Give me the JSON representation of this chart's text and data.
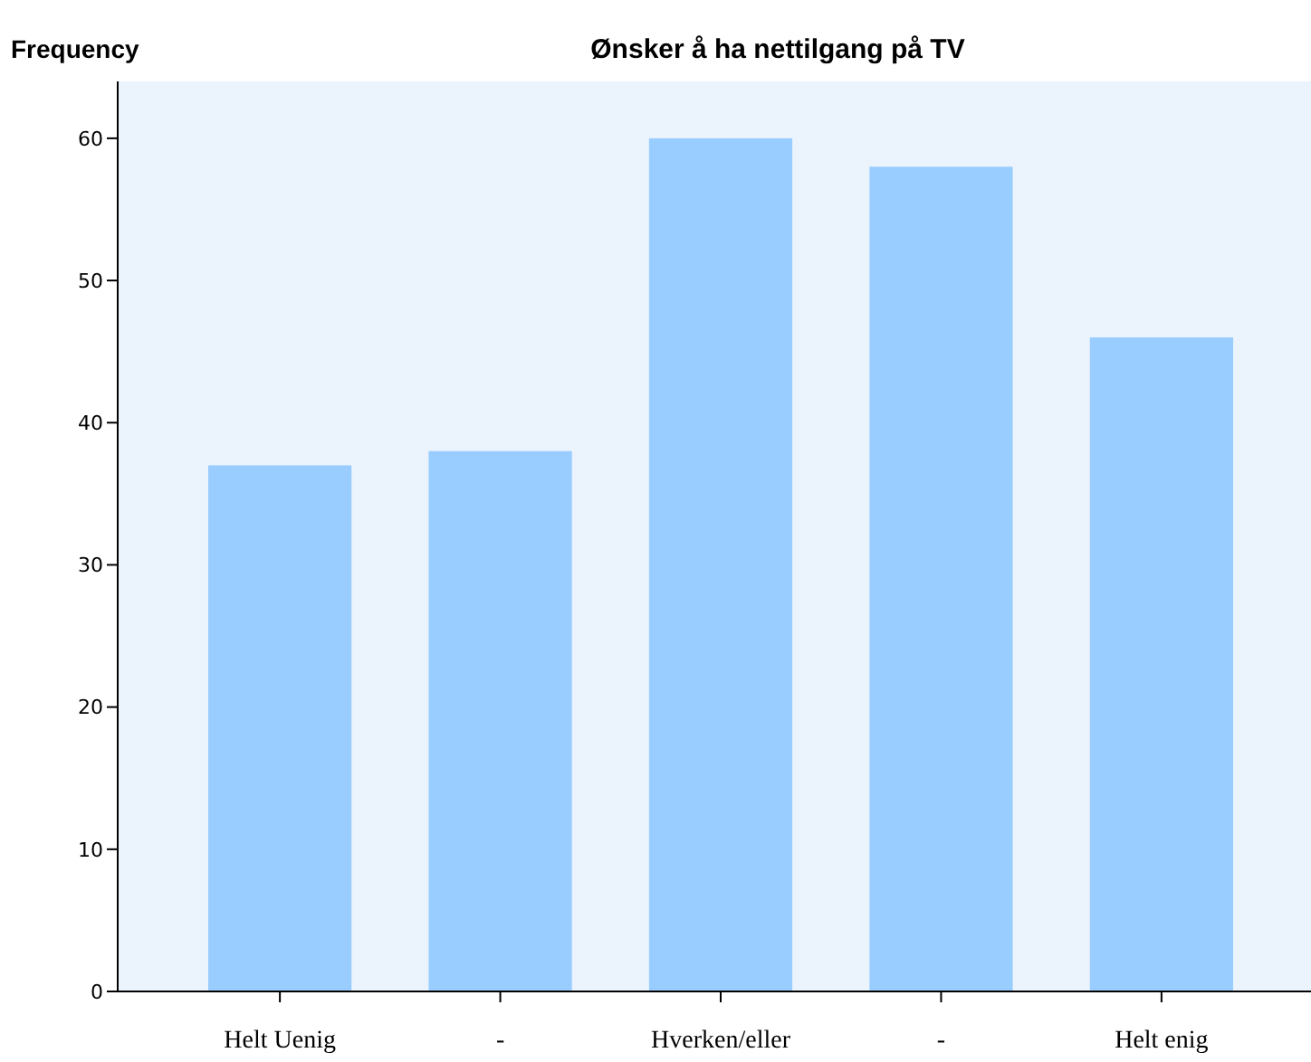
{
  "chart_data": {
    "type": "bar",
    "title": "Ønsker å ha nettilgang på TV",
    "ylabel": "Frequency",
    "categories": [
      "Helt Uenig",
      "-",
      "Hverken/eller",
      "-",
      "Helt enig"
    ],
    "values": [
      37,
      38,
      60,
      58,
      46
    ],
    "color": "#99ccff",
    "ylim": [
      0,
      64
    ],
    "yticks": [
      0,
      10,
      20,
      30,
      40,
      50,
      60
    ],
    "grid": false
  }
}
